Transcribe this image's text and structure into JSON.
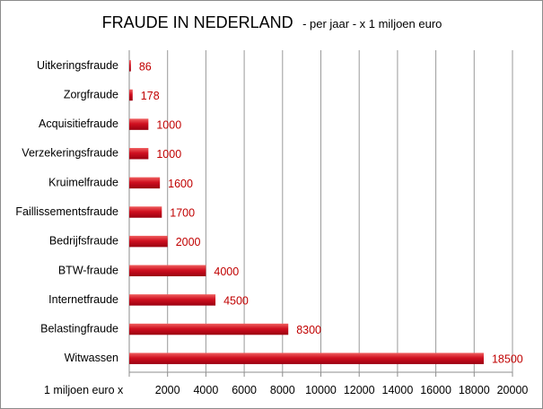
{
  "chart_data": {
    "type": "bar",
    "orientation": "horizontal",
    "title": "FRAUDE IN NEDERLAND",
    "subtitle": "- per jaar - x 1 miljoen euro",
    "xlabel": "1 miljoen euro x",
    "ylabel": "",
    "xlim": [
      0,
      20000
    ],
    "x_ticks": [
      2000,
      4000,
      6000,
      8000,
      10000,
      12000,
      14000,
      16000,
      18000,
      20000
    ],
    "grid": true,
    "bar_color": "#c8101e",
    "label_color": "#c00000",
    "categories": [
      "Uitkeringsfraude",
      "Zorgfraude",
      "Acquisitiefraude",
      "Verzekeringsfraude",
      "Kruimelfraude",
      "Faillissementsfraude",
      "Bedrijfsfraude",
      "BTW-fraude",
      "Internetfraude",
      "Belastingfraude",
      "Witwassen"
    ],
    "values": [
      86,
      178,
      1000,
      1000,
      1600,
      1700,
      2000,
      4000,
      4500,
      8300,
      18500
    ],
    "data_labels": [
      "86",
      "178",
      "1000",
      "1000",
      "1600",
      "1700",
      "2000",
      "4000",
      "4500",
      "8300",
      "18500"
    ]
  }
}
